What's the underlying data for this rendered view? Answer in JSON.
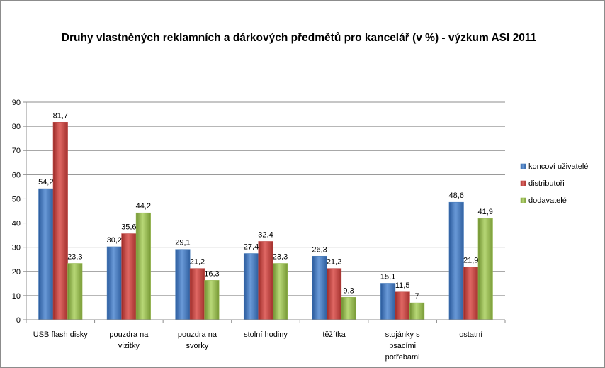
{
  "chart_data": {
    "type": "bar",
    "title": "Druhy vlastněných reklamních a dárkových předmětů pro kancelář (v %) - výzkum ASI 2011",
    "xlabel": "",
    "ylabel": "",
    "ylim": [
      0,
      90
    ],
    "yticks": [
      0,
      10,
      20,
      30,
      40,
      50,
      60,
      70,
      80,
      90
    ],
    "grid": true,
    "legend_position": "right",
    "categories": [
      [
        "USB flash  disky"
      ],
      [
        "pouzdra na",
        "vizitky"
      ],
      [
        "pouzdra na",
        "svorky"
      ],
      [
        "stolní hodiny"
      ],
      [
        "těžítka"
      ],
      [
        "stojánky s",
        "psacími",
        "potřebami"
      ],
      [
        "ostatní"
      ]
    ],
    "series": [
      {
        "name": "koncoví uživatelé",
        "color": "#4a7ebb",
        "values": [
          54.2,
          30.2,
          29.1,
          27.4,
          26.3,
          15.1,
          48.6
        ],
        "labels": [
          "54,2",
          "30,2",
          "29,1",
          "27,4",
          "26,3",
          "15,1",
          "48,6"
        ]
      },
      {
        "name": "distributoři",
        "color": "#be4b48",
        "values": [
          81.7,
          35.6,
          21.2,
          32.4,
          21.2,
          11.5,
          21.9
        ],
        "labels": [
          "81,7",
          "35,6",
          "21,2",
          "32,4",
          "21,2",
          "11,5",
          "21,9"
        ]
      },
      {
        "name": "dodavatelé",
        "color": "#98b954",
        "values": [
          23.3,
          44.2,
          16.3,
          23.3,
          9.3,
          7,
          41.9
        ],
        "labels": [
          "23,3",
          "44,2",
          "16,3",
          "23,3",
          "9,3",
          "7",
          "41,9"
        ]
      }
    ]
  }
}
